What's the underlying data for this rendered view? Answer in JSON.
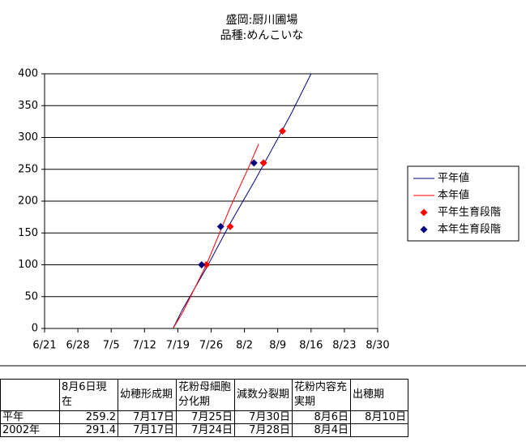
{
  "chart_data": {
    "type": "line",
    "title": "盛岡:厨川圃場",
    "subtitle": "品種:めんこいな",
    "xlim": [
      "6/21",
      "8/30"
    ],
    "xticks": [
      "6/21",
      "6/28",
      "7/5",
      "7/12",
      "7/19",
      "7/26",
      "8/2",
      "8/9",
      "8/16",
      "8/23",
      "8/30"
    ],
    "ylim": [
      0,
      400
    ],
    "yticks": [
      0,
      50,
      100,
      150,
      200,
      250,
      300,
      350,
      400
    ],
    "grid": true,
    "legend": "right",
    "series": [
      {
        "name": "平年値",
        "color": "#000080",
        "kind": "line",
        "x": [
          "7/18",
          "7/20",
          "7/25",
          "7/30",
          "8/4",
          "8/9",
          "8/12",
          "8/16"
        ],
        "values": [
          0,
          30,
          95,
          165,
          230,
          298,
          340,
          400
        ]
      },
      {
        "name": "本年値",
        "color": "#ff0000",
        "kind": "line",
        "x": [
          "7/18",
          "7/20",
          "7/25",
          "7/30",
          "8/3",
          "8/5"
        ],
        "values": [
          0,
          25,
          100,
          190,
          255,
          290
        ]
      },
      {
        "name": "平年生育段階",
        "color": "#ff0000",
        "kind": "scatter",
        "x": [
          "7/25",
          "7/30",
          "8/6",
          "8/10"
        ],
        "values": [
          100,
          160,
          260,
          310
        ]
      },
      {
        "name": "本年生育段階",
        "color": "#000080",
        "kind": "scatter",
        "x": [
          "7/24",
          "7/28",
          "8/4"
        ],
        "values": [
          100,
          160,
          260
        ]
      }
    ]
  },
  "table": {
    "header": [
      null,
      "8月6日現在",
      "幼穂形成期",
      "花粉母細胞分化期",
      "減数分裂期",
      "花粉内容充実期",
      "出穂期"
    ],
    "rows": [
      [
        "平年",
        "259.2",
        "7月17日",
        "7月25日",
        "7月30日",
        "8月6日",
        "8月10日"
      ],
      [
        "2002年",
        "291.4",
        "7月17日",
        "7月24日",
        "7月28日",
        "8月4日",
        null
      ]
    ]
  }
}
